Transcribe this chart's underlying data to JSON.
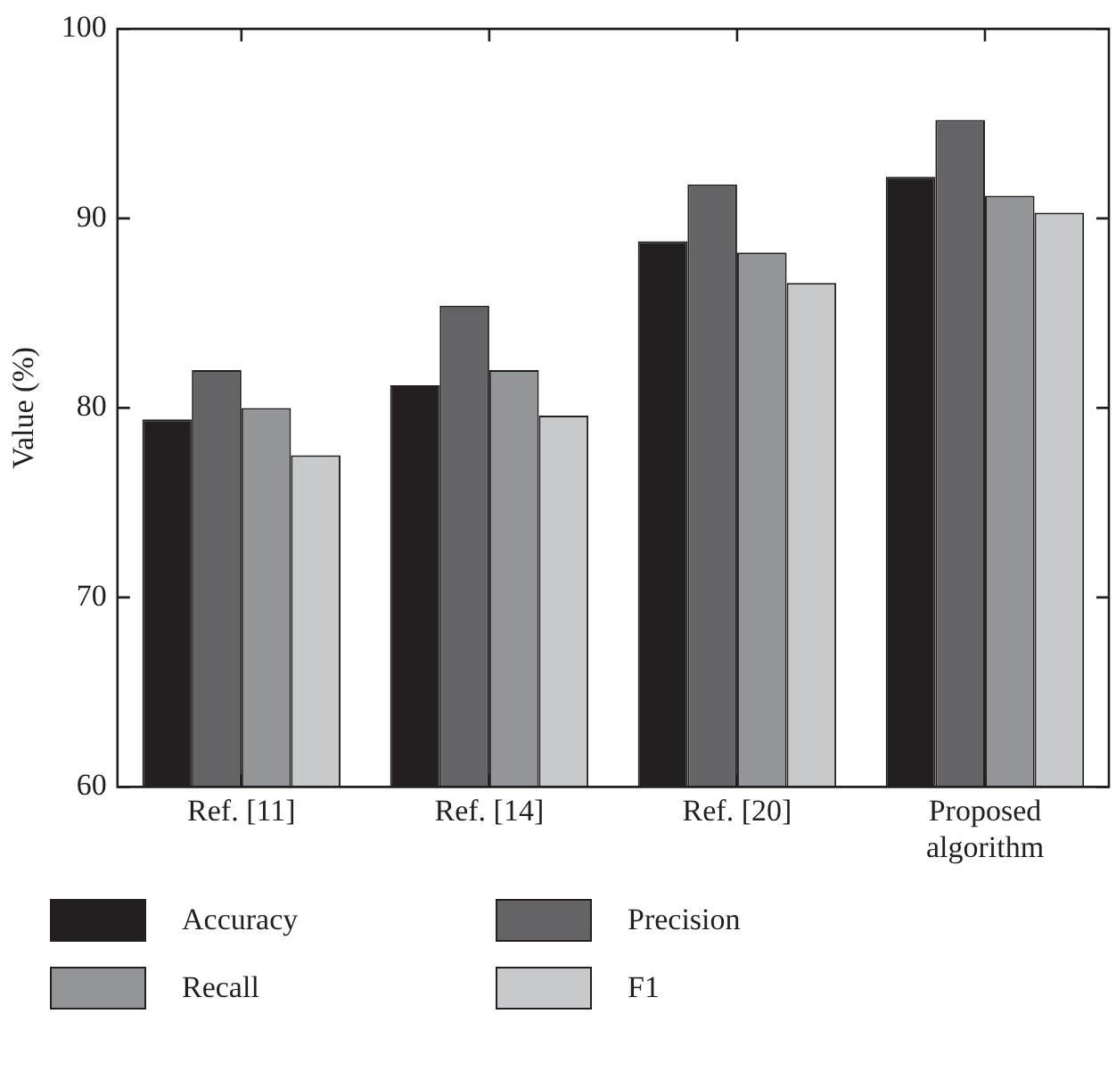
{
  "chart_data": {
    "type": "bar",
    "ylabel": "Value (%)",
    "categories": [
      "Ref. [11]",
      "Ref. [14]",
      "Ref. [20]",
      "Proposed algorithm"
    ],
    "series": [
      {
        "name": "Accuracy",
        "color": "#231f20",
        "values": [
          79.4,
          81.2,
          88.8,
          92.2
        ]
      },
      {
        "name": "Precision",
        "color": "#646466",
        "values": [
          82.0,
          85.4,
          91.8,
          95.2
        ]
      },
      {
        "name": "Recall",
        "color": "#939598",
        "values": [
          80.0,
          82.0,
          88.2,
          91.2
        ]
      },
      {
        "name": "F1",
        "color": "#c8c9cb",
        "values": [
          77.5,
          79.6,
          86.6,
          90.3
        ]
      }
    ],
    "ylim": [
      60,
      100
    ],
    "yticks": [
      60,
      70,
      80,
      90,
      100
    ],
    "grid": false,
    "legend": "bottom"
  }
}
